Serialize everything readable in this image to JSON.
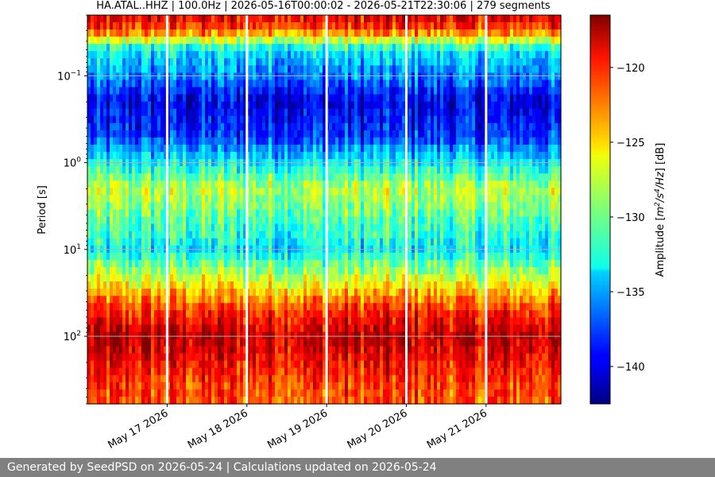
{
  "chart_data": {
    "type": "heatmap",
    "title": "HA.ATAL..HHZ | 100.0Hz | 2026-05-16T00:00:02 - 2026-05-21T22:30:06 | 279 segments",
    "xlabel": "",
    "ylabel": "Period [s]",
    "x_ticks": [
      "May 17 2026",
      "May 18 2026",
      "May 19 2026",
      "May 20 2026",
      "May 21 2026"
    ],
    "x_range": [
      "2026-05-16T00:00:02",
      "2026-05-21T22:30:06"
    ],
    "y_scale": "log",
    "y_inverted": true,
    "y_ticks": [
      {
        "value": 0.1,
        "base": "10",
        "exp": "−1"
      },
      {
        "value": 1,
        "base": "10",
        "exp": "0"
      },
      {
        "value": 10,
        "base": "10",
        "exp": "1"
      },
      {
        "value": 100,
        "base": "10",
        "exp": "2"
      }
    ],
    "y_range": [
      0.02,
      600
    ],
    "grid": true,
    "colormap": "jet",
    "colorbar": {
      "label_prefix": "Amplitude [",
      "label_unit_pre": "m",
      "label_unit_exp1": "2",
      "label_unit_mid": "/s",
      "label_unit_exp2": "4",
      "label_unit_post": "/Hz",
      "label_suffix": "] [dB]",
      "range": [
        -142.5,
        -116.5
      ],
      "ticks": [
        -140,
        -135,
        -130,
        -125,
        -120
      ],
      "tick_labels": [
        "−140",
        "−135",
        "−130",
        "−125",
        "−120"
      ]
    },
    "band_profile": [
      {
        "period": 0.02,
        "db": -119
      },
      {
        "period": 0.03,
        "db": -122
      },
      {
        "period": 0.05,
        "db": -133
      },
      {
        "period": 0.1,
        "db": -136
      },
      {
        "period": 0.2,
        "db": -140
      },
      {
        "period": 0.5,
        "db": -138
      },
      {
        "period": 1.0,
        "db": -133
      },
      {
        "period": 2.0,
        "db": -128
      },
      {
        "period": 5.0,
        "db": -131
      },
      {
        "period": 10,
        "db": -133
      },
      {
        "period": 20,
        "db": -128
      },
      {
        "period": 50,
        "db": -121
      },
      {
        "period": 100,
        "db": -118
      },
      {
        "period": 300,
        "db": -121
      },
      {
        "period": 600,
        "db": -122
      }
    ],
    "gaps": [
      "2026-05-17T00:00:00",
      "2026-05-18T00:00:00",
      "2026-05-19T00:00:00",
      "2026-05-20T00:00:00",
      "2026-05-21T00:00:00"
    ]
  },
  "footer": {
    "text": "Generated by SeedPSD on 2026-05-24 | Calculations updated on 2026-05-24"
  }
}
